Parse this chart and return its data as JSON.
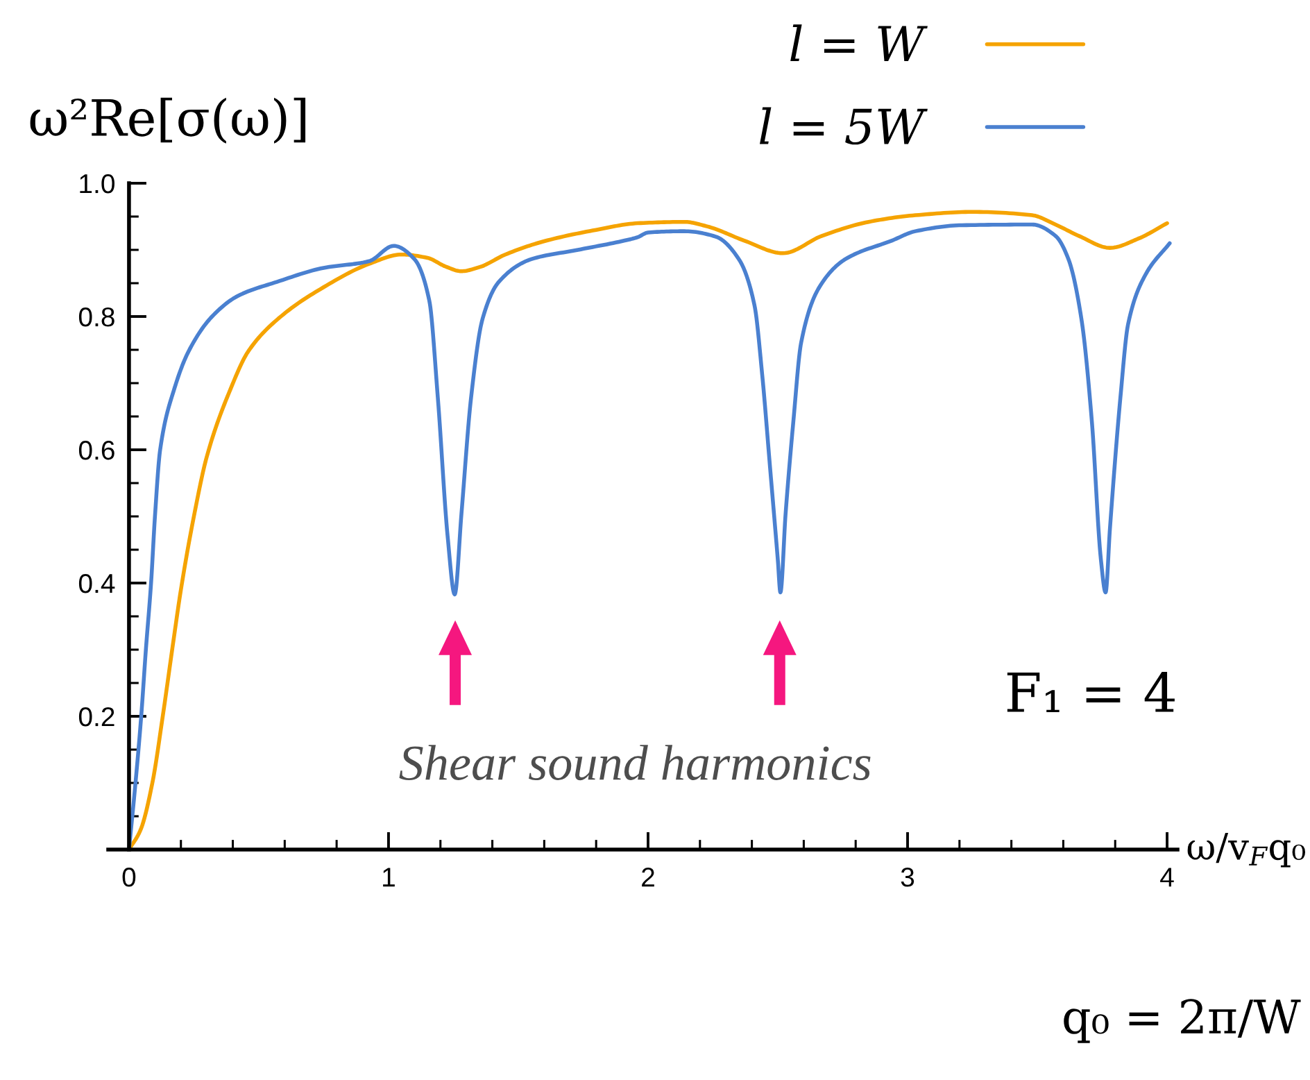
{
  "chart_data": {
    "type": "line",
    "xlabel": "ω/v$_{F}$q₀",
    "ylabel": "ω²Re[σ(ω)]",
    "annotations": [
      "Shear sound harmonics",
      "F₁ = 4",
      "q₀ = 2π/W"
    ],
    "xlim": [
      -0.08,
      4.04
    ],
    "ylim": [
      0,
      1.0
    ],
    "xticks": [
      0,
      {
        "value": 0.2,
        "label": null
      },
      {
        "value": 0.4,
        "label": null
      },
      {
        "value": 0.6,
        "label": null
      },
      {
        "value": 0.8,
        "label": null
      },
      1,
      {
        "value": 1.2,
        "label": null
      },
      {
        "value": 1.4,
        "label": null
      },
      {
        "value": 1.6,
        "label": null
      },
      {
        "value": 1.8,
        "label": null
      },
      2,
      {
        "value": 2.2,
        "label": null
      },
      {
        "value": 2.4,
        "label": null
      },
      {
        "value": 2.6,
        "label": null
      },
      {
        "value": 2.8,
        "label": null
      },
      3,
      {
        "value": 3.2,
        "label": null
      },
      {
        "value": 3.4,
        "label": null
      },
      {
        "value": 3.6,
        "label": null
      },
      {
        "value": 3.8,
        "label": null
      },
      4
    ],
    "yticks": [
      {
        "value": 0.05,
        "label": null
      },
      {
        "value": 0.1,
        "label": null
      },
      {
        "value": 0.15,
        "label": null
      },
      0.2,
      {
        "value": 0.25,
        "label": null
      },
      {
        "value": 0.3,
        "label": null
      },
      {
        "value": 0.35,
        "label": null
      },
      0.4,
      {
        "value": 0.45,
        "label": null
      },
      {
        "value": 0.5,
        "label": null
      },
      {
        "value": 0.55,
        "label": null
      },
      0.6,
      {
        "value": 0.65,
        "label": null
      },
      {
        "value": 0.7,
        "label": null
      },
      {
        "value": 0.75,
        "label": null
      },
      0.8,
      {
        "value": 0.85,
        "label": null
      },
      {
        "value": 0.9,
        "label": null
      },
      {
        "value": 0.95,
        "label": null
      },
      {
        "value": 1.0,
        "label": "1.0"
      }
    ],
    "legend": "top right",
    "series": [
      {
        "name": "l = W",
        "color": "#f5a300",
        "x": [
          0,
          0.045,
          0.09,
          0.13,
          0.17,
          0.2,
          0.25,
          0.3,
          0.39,
          0.46,
          0.585,
          0.75,
          0.925,
          1.05,
          1.15,
          1.22,
          1.28,
          1.35,
          1.45,
          1.6,
          1.8,
          1.96,
          2.14,
          2.23,
          2.37,
          2.52,
          2.67,
          2.85,
          3.03,
          3.25,
          3.48,
          3.57,
          3.66,
          3.78,
          3.89,
          4.0
        ],
        "values": [
          0,
          0.03,
          0.1,
          0.2,
          0.31,
          0.39,
          0.5,
          0.59,
          0.69,
          0.748,
          0.8,
          0.844,
          0.879,
          0.893,
          0.888,
          0.875,
          0.868,
          0.874,
          0.893,
          0.913,
          0.93,
          0.94,
          0.942,
          0.935,
          0.914,
          0.895,
          0.921,
          0.942,
          0.952,
          0.957,
          0.952,
          0.938,
          0.921,
          0.903,
          0.917,
          0.94
        ]
      },
      {
        "name": "l = 5W",
        "color": "#4a80d0",
        "x": [
          0,
          0.025,
          0.047,
          0.065,
          0.085,
          0.1,
          0.12,
          0.175,
          0.23,
          0.32,
          0.42,
          0.57,
          0.75,
          0.925,
          1.02,
          1.1,
          1.157,
          1.19,
          1.228,
          1.255,
          1.281,
          1.318,
          1.362,
          1.425,
          1.55,
          1.73,
          1.91,
          1.96,
          2.0,
          2.14,
          2.26,
          2.35,
          2.41,
          2.44,
          2.47,
          2.5,
          2.51,
          2.53,
          2.56,
          2.59,
          2.66,
          2.76,
          2.94,
          3.03,
          3.21,
          3.48,
          3.57,
          3.62,
          3.67,
          3.71,
          3.745,
          3.763,
          3.78,
          3.82,
          3.85,
          3.92,
          4.01
        ],
        "values": [
          0,
          0.1,
          0.2,
          0.3,
          0.4,
          0.5,
          0.6,
          0.692,
          0.748,
          0.8,
          0.831,
          0.852,
          0.873,
          0.883,
          0.906,
          0.886,
          0.824,
          0.678,
          0.469,
          0.383,
          0.504,
          0.678,
          0.796,
          0.852,
          0.886,
          0.9,
          0.914,
          0.919,
          0.926,
          0.928,
          0.92,
          0.886,
          0.817,
          0.712,
          0.574,
          0.435,
          0.386,
          0.504,
          0.643,
          0.761,
          0.844,
          0.886,
          0.914,
          0.928,
          0.937,
          0.938,
          0.921,
          0.886,
          0.796,
          0.643,
          0.435,
          0.386,
          0.483,
          0.678,
          0.789,
          0.865,
          0.91
        ]
      }
    ]
  }
}
